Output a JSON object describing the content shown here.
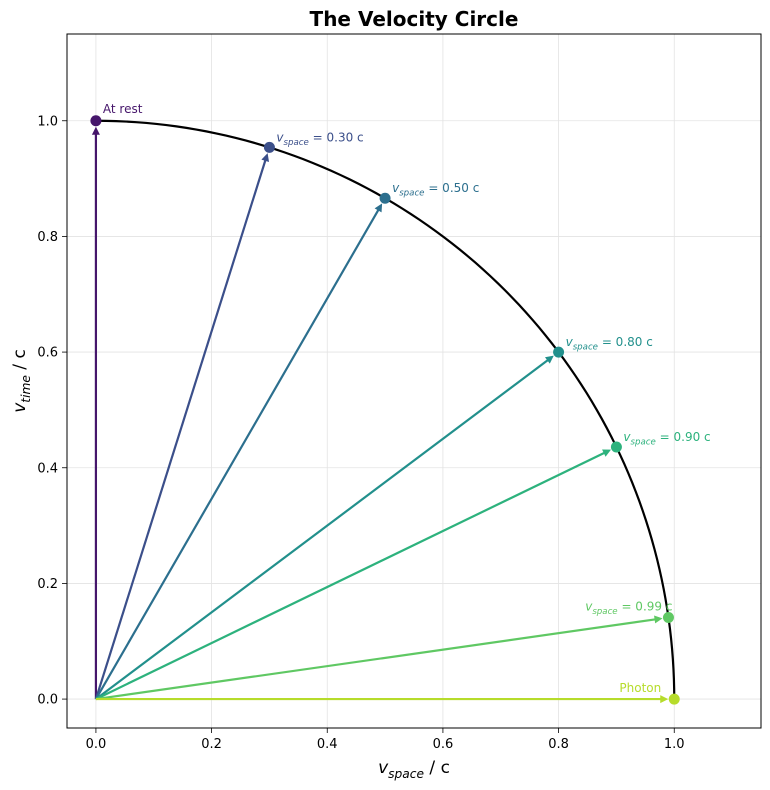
{
  "chart_data": {
    "type": "line",
    "title": "The Velocity Circle",
    "xlabel": {
      "var": "v",
      "sub": "space",
      "unit": " / c"
    },
    "ylabel": {
      "var": "v",
      "sub": "time",
      "unit": " / c"
    },
    "xlim": [
      -0.05,
      1.15
    ],
    "ylim": [
      -0.05,
      1.15
    ],
    "xticks": [
      "0.0",
      "0.2",
      "0.4",
      "0.6",
      "0.8",
      "1.0"
    ],
    "yticks": [
      "0.0",
      "0.2",
      "0.4",
      "0.6",
      "0.8",
      "1.0"
    ],
    "grid": true,
    "arc": {
      "description": "unit circle quadrant",
      "radius": 1,
      "color": "#000000"
    },
    "vectors": [
      {
        "vspace": 0.0,
        "vtime": 1.0,
        "color": "#46166b",
        "label": {
          "plain": "At rest"
        }
      },
      {
        "vspace": 0.3,
        "vtime": 0.9539,
        "color": "#3b4f8a",
        "label": {
          "var": "v",
          "sub": "space",
          "rest": " = 0.30 c"
        }
      },
      {
        "vspace": 0.5,
        "vtime": 0.866,
        "color": "#2c6f8e",
        "label": {
          "var": "v",
          "sub": "space",
          "rest": " = 0.50 c"
        }
      },
      {
        "vspace": 0.8,
        "vtime": 0.6,
        "color": "#22908c",
        "label": {
          "var": "v",
          "sub": "space",
          "rest": " = 0.80 c"
        }
      },
      {
        "vspace": 0.9,
        "vtime": 0.4359,
        "color": "#2db27d",
        "label": {
          "var": "v",
          "sub": "space",
          "rest": " = 0.90 c"
        }
      },
      {
        "vspace": 0.99,
        "vtime": 0.1411,
        "color": "#5fc863",
        "label": {
          "var": "v",
          "sub": "space",
          "rest": " = 0.99 c"
        }
      },
      {
        "vspace": 1.0,
        "vtime": 0.0,
        "color": "#b6dc2b",
        "label": {
          "plain": "Photon"
        }
      }
    ]
  }
}
